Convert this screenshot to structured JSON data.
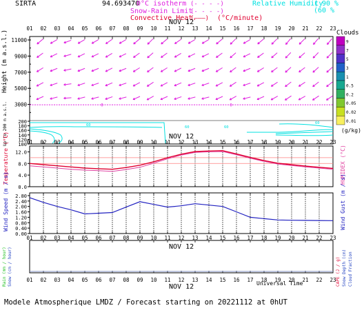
{
  "header": {
    "station": "SIRTA",
    "coords": "94.693470",
    "isotherm_label": "0°C isotherm",
    "isotherm_key": "(- - - -)",
    "snowrain_label": "Snow-Rain Limit",
    "snowrain_key": "(- - - -)",
    "convective_label": "Convective Heat.",
    "convective_key": "(———)",
    "convective_unit": "(°C/minute)",
    "rh_label": "Relative Humidity",
    "rh_90": "90 %",
    "rh_60": "60 %",
    "rh_paren_90": "(",
    "rh_paren_60": "("
  },
  "date_label": "NOV 12",
  "hours": [
    "01",
    "02",
    "03",
    "04",
    "05",
    "06",
    "07",
    "08",
    "09",
    "10",
    "11",
    "12",
    "13",
    "14",
    "15",
    "16",
    "17",
    "18",
    "19",
    "20",
    "21",
    "22",
    "23"
  ],
  "footer": {
    "universal_time": "Universal Time",
    "title": "Modele Atmospherique LMDZ / Forecast starting on 20221112 at 0hUT"
  },
  "colorbar": {
    "title": "Clouds",
    "unit": "(g/kg)",
    "levels": [
      "9",
      "7",
      "5",
      "3",
      "1",
      "0.5",
      "0.2",
      "0.05",
      "0.02",
      "0.01"
    ],
    "colors": [
      "#c000c0",
      "#9030c8",
      "#5030c8",
      "#2060c8",
      "#1890b0",
      "#18a890",
      "#30b060",
      "#80c830",
      "#c8e020",
      "#f8f060"
    ]
  },
  "colors": {
    "isotherm": "#e020e0",
    "snowrain": "#e020e0",
    "convective": "#e00030",
    "humidity": "#00e0e0",
    "wind_arrow": "#e020e0",
    "temperature": "#e00030",
    "humidex": "#e040a0",
    "wind_speed": "#2020c0",
    "rain_axis": "#20c020",
    "snow_axis": "#2040c0",
    "temp_axis": "#e00030",
    "cape_axis": "#e00030"
  },
  "chart_data": [
    {
      "type": "line",
      "panel": "altitude",
      "ylabel": "Height (m a.s.l.)",
      "ylabel_low": "Up to 200 m a.s.l.",
      "yticks_high": [
        3000,
        5000,
        7000,
        9000,
        11000
      ],
      "yticks_low": [
        100,
        120,
        140,
        160,
        180,
        200
      ],
      "isotherm_0c_m": 2950,
      "isotherm_label_value": "0",
      "humidity_label": "60",
      "wind_arrow_angle_deg": [
        135,
        140,
        150,
        160,
        150,
        150,
        145,
        150,
        140,
        135,
        140,
        145,
        150,
        150,
        140,
        135,
        150,
        140,
        135,
        130,
        135,
        130,
        130
      ]
    },
    {
      "type": "line",
      "panel": "temperature",
      "ylabel": "Temperature (°C)",
      "ylabel_right": "HUMIDEX (°C)",
      "yticks": [
        0.0,
        4.0,
        8.0,
        12.0
      ],
      "ylim": [
        0,
        14
      ],
      "x": [
        "01",
        "02",
        "03",
        "04",
        "05",
        "06",
        "07",
        "08",
        "09",
        "10",
        "11",
        "12",
        "13",
        "14",
        "15",
        "16",
        "17",
        "18",
        "19",
        "20",
        "21",
        "22",
        "23"
      ],
      "series": [
        {
          "name": "Temperature",
          "values": [
            8.0,
            7.6,
            7.2,
            6.8,
            6.4,
            6.2,
            6.0,
            6.6,
            7.4,
            8.6,
            10.0,
            11.2,
            12.1,
            12.3,
            12.4,
            11.3,
            10.1,
            9.0,
            8.1,
            7.6,
            7.1,
            6.7,
            6.3
          ]
        },
        {
          "name": "Humidex",
          "values": [
            7.2,
            6.8,
            6.4,
            6.0,
            5.7,
            5.5,
            5.3,
            5.9,
            6.7,
            8.1,
            9.6,
            10.9,
            11.8,
            12.0,
            12.1,
            11.0,
            9.8,
            8.7,
            7.8,
            7.3,
            6.8,
            6.4,
            6.0
          ]
        }
      ]
    },
    {
      "type": "line",
      "panel": "wind",
      "ylabel": "Wind Speed (m / s)",
      "ylabel_right": "Wind Gust (m / s)",
      "yticks": [
        0.0,
        0.4,
        0.8,
        1.2,
        1.6,
        2.0,
        2.4,
        2.8
      ],
      "ylim": [
        0,
        3.0
      ],
      "x": [
        "01",
        "02",
        "03",
        "04",
        "05",
        "06",
        "07",
        "08",
        "09",
        "10",
        "11",
        "12",
        "13",
        "14",
        "15",
        "16",
        "17",
        "18",
        "19",
        "20",
        "21",
        "22",
        "23"
      ],
      "series": [
        {
          "name": "Wind Speed",
          "values": [
            2.65,
            2.3,
            2.0,
            1.75,
            1.45,
            1.5,
            1.55,
            1.95,
            2.35,
            2.15,
            1.95,
            2.05,
            2.2,
            2.1,
            2.0,
            1.6,
            1.2,
            1.1,
            1.0,
            0.98,
            0.97,
            0.96,
            0.95
          ]
        }
      ]
    },
    {
      "type": "line",
      "panel": "precipitation",
      "ylabel": "Rain (mm / hour)",
      "ylabel_2": "Snow (cm / hour)",
      "ylabel_right": "CAPE (J / g)",
      "ylabel_right_2": "Snow Depth (cm)",
      "ylabel_right_3": "Cloud Fraction",
      "series": []
    }
  ]
}
